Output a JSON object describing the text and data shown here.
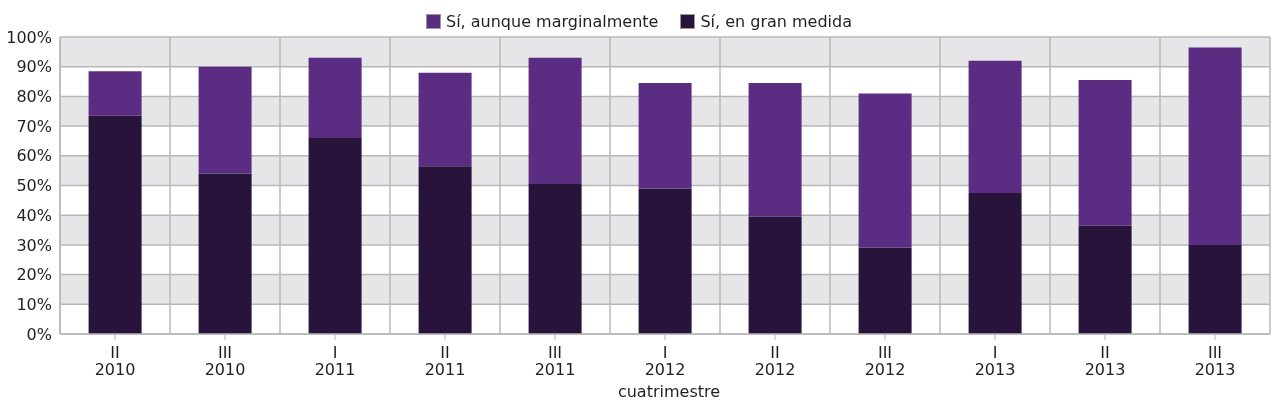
{
  "chart_data": {
    "type": "bar",
    "stacked": true,
    "xlabel": "cuatrimestre",
    "categories": [
      "II\n2010",
      "III\n2010",
      "I\n2011",
      "II\n2011",
      "III\n2011",
      "I\n2012",
      "II\n2012",
      "III\n2012",
      "I\n2013",
      "II\n2013",
      "III\n2013"
    ],
    "series": [
      {
        "name": "Sí, en gran medida",
        "color": "#28143a",
        "values": [
          73.5,
          54,
          66,
          56.5,
          50.5,
          49,
          39.5,
          29,
          47.5,
          36.5,
          30
        ]
      },
      {
        "name": "Sí, aunque marginalmente",
        "color": "#5b2d82",
        "values": [
          15,
          36,
          27,
          31.5,
          42.5,
          35.5,
          45,
          52,
          44.5,
          49,
          66.5
        ]
      }
    ],
    "ylim": [
      0,
      100
    ],
    "yticks": [
      {
        "value": 0,
        "label": "0%"
      },
      {
        "value": 10,
        "label": "10%"
      },
      {
        "value": 20,
        "label": "20%"
      },
      {
        "value": 30,
        "label": "30%"
      },
      {
        "value": 40,
        "label": "40%"
      },
      {
        "value": 50,
        "label": "50%"
      },
      {
        "value": 60,
        "label": "60%"
      },
      {
        "value": 70,
        "label": "70%"
      },
      {
        "value": 80,
        "label": "80%"
      },
      {
        "value": 90,
        "label": "90%"
      },
      {
        "value": 100,
        "label": "100%"
      }
    ],
    "grid": true,
    "legend": "top"
  }
}
